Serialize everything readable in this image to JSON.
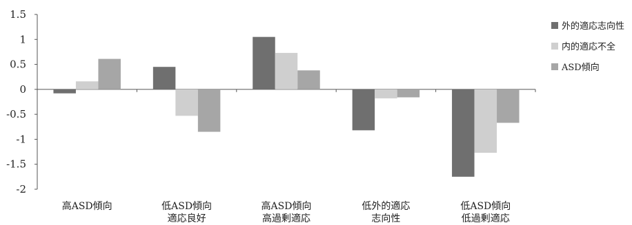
{
  "chart_data": {
    "type": "bar",
    "categories": [
      [
        "高ASD傾向"
      ],
      [
        "低ASD傾向",
        "適応良好"
      ],
      [
        "高ASD傾向",
        "高過剰適応"
      ],
      [
        "低外的適応",
        "志向性"
      ],
      [
        "低ASD傾向",
        "低過剰適応"
      ]
    ],
    "series": [
      {
        "name": "外的適応志向性",
        "color": "#6f6f6f",
        "values": [
          -0.08,
          0.45,
          1.05,
          -0.82,
          -1.75
        ]
      },
      {
        "name": "内的適応不全",
        "color": "#cfcfcf",
        "values": [
          0.16,
          -0.53,
          0.73,
          -0.18,
          -1.27
        ]
      },
      {
        "name": "ASD傾向",
        "color": "#a6a6a6",
        "values": [
          0.61,
          -0.85,
          0.38,
          -0.16,
          -0.67
        ]
      }
    ],
    "ylim": [
      -2,
      1.5
    ],
    "yticks": [
      {
        "value": 1.5,
        "label": "1.5"
      },
      {
        "value": 1,
        "label": "1"
      },
      {
        "value": 0.5,
        "label": "0.5"
      },
      {
        "value": 0,
        "label": "0"
      },
      {
        "value": -0.5,
        "label": "-0.5"
      },
      {
        "value": -1,
        "label": "-1"
      },
      {
        "value": -1.5,
        "label": "-1.5"
      },
      {
        "value": -2,
        "label": "-2"
      }
    ],
    "grid": false,
    "legend_position": "right"
  }
}
